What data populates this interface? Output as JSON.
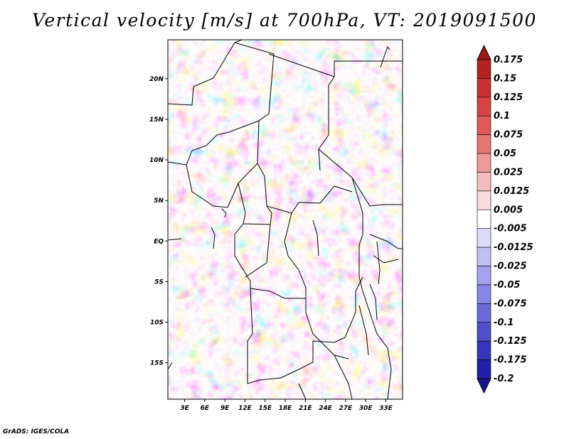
{
  "title": "Vertical velocity [m/s] at 700hPa, VT: 2019091500",
  "credit": "GrADS: IGES/COLA",
  "map": {
    "lat_labels": [
      "20N",
      "15N",
      "10N",
      "5N",
      "EQ",
      "5S",
      "10S",
      "15S"
    ],
    "lat_values": [
      20,
      15,
      10,
      5,
      0,
      -5,
      -10,
      -15
    ],
    "lon_labels": [
      "3E",
      "6E",
      "9E",
      "12E",
      "15E",
      "18E",
      "21E",
      "24E",
      "27E",
      "30E",
      "33E"
    ],
    "lon_values": [
      3,
      6,
      9,
      12,
      15,
      18,
      21,
      24,
      27,
      30,
      33
    ],
    "lon_range": [
      0.5,
      35.5
    ],
    "lat_range": [
      -19.5,
      24.8
    ],
    "field": "vertical velocity",
    "level": "700hPa",
    "units": "m/s"
  },
  "colorbar": {
    "levels": [
      "0.175",
      "0.15",
      "0.125",
      "0.1",
      "0.075",
      "0.05",
      "0.025",
      "0.0125",
      "0.005",
      "-0.005",
      "-0.0125",
      "-0.025",
      "-0.05",
      "-0.075",
      "-0.1",
      "-0.125",
      "-0.175",
      "-0.2"
    ],
    "colors": [
      "#a01818",
      "#b42222",
      "#c83232",
      "#d84444",
      "#e05a5a",
      "#e87474",
      "#f09898",
      "#f6bcbc",
      "#fbdcdc",
      "#ffffff",
      "#dcdcfa",
      "#c0c0f4",
      "#a2a2ee",
      "#8686e6",
      "#6a6ada",
      "#5050cc",
      "#3636bc",
      "#2020a8",
      "#141490"
    ]
  }
}
